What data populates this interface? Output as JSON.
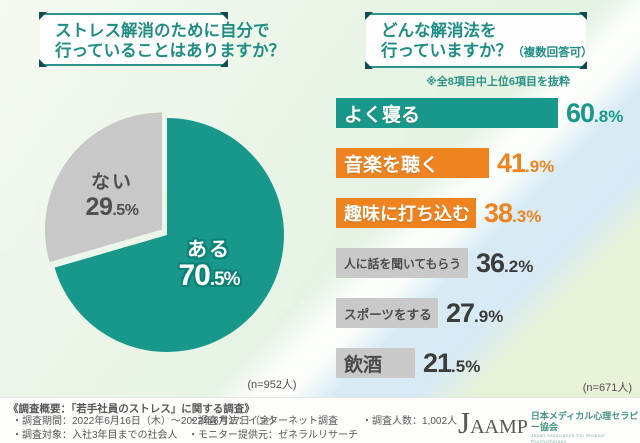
{
  "left_section": {
    "title_line1": "ストレス解消のために自分で",
    "title_line2": "行っていることはありますか？",
    "n_label": "(n=952人)"
  },
  "right_section": {
    "title_line1": "どんな解消法を",
    "title_line2": "行っていますか？",
    "title_suffix": "（複数回答可）",
    "note": "※全8項目中上位6項目を抜粋",
    "n_label": "(n=671人)"
  },
  "chart_data": [
    {
      "type": "pie",
      "title": "ストレス解消のために自分で行っていることはありますか？",
      "labels": [
        "ある",
        "ない"
      ],
      "values": [
        70.5,
        29.5
      ],
      "unit": "%",
      "colors": [
        "#18988b",
        "#c9c8c8"
      ],
      "start_angle_deg": 0,
      "direction": "clockwise",
      "exploded_slice": "ない",
      "n_label": "(n=952人)"
    },
    {
      "type": "bar",
      "orientation": "horizontal",
      "title": "どんな解消法を行っていますか？（複数回答可）",
      "note": "※全8項目中上位6項目を抜粋",
      "categories": [
        "よく寝る",
        "音楽を聴く",
        "趣味に打ち込む",
        "人に話を聞いてもらう",
        "スポーツをする",
        "飲酒"
      ],
      "values": [
        60.8,
        41.9,
        38.3,
        36.2,
        27.9,
        21.5
      ],
      "unit": "%",
      "bar_colors": [
        "#18988b",
        "#ee831f",
        "#ee831f",
        "#c9c9c9",
        "#c9c9c9",
        "#c9c9c9"
      ],
      "value_text_colors": [
        "#18988b",
        "#ee831f",
        "#ee831f",
        "#3c3c3c",
        "#3c3c3c",
        "#3c3c3c"
      ],
      "category_text_colors": [
        "#ffffff",
        "#ffffff",
        "#ffffff",
        "#4b4b4b",
        "#4b4b4b",
        "#4b4b4b"
      ],
      "xlim": [
        0,
        65
      ],
      "n_label": "(n=671人)"
    }
  ],
  "footer": {
    "overview": "《調査概要：「若手社員のストレス」に関する調査》",
    "period": "・調査期間：2022年6月16日（木）～2022年6月17日（金）",
    "target": "・調査対象：入社3年目までの社会人",
    "method": "・調査方法：インターネット調査",
    "count": "・調査人数：1,002人",
    "monitor": "・モニター提供元：ゼネラルリサーチ",
    "logo_acronym": "JAAMP",
    "logo_jp": "日本メディカル心理セラピー協会",
    "logo_en": "Japan Association For Medical Psychotherapy"
  },
  "colors": {
    "teal": "#18988b",
    "teal_dark_outline": "#0c8175",
    "orange": "#ee831f",
    "gray": "#c9c9c9",
    "title_teal": "#1f8d84",
    "corner_mark": "#134b4e",
    "footer_text": "#595757",
    "logo_teal": "#459384"
  }
}
